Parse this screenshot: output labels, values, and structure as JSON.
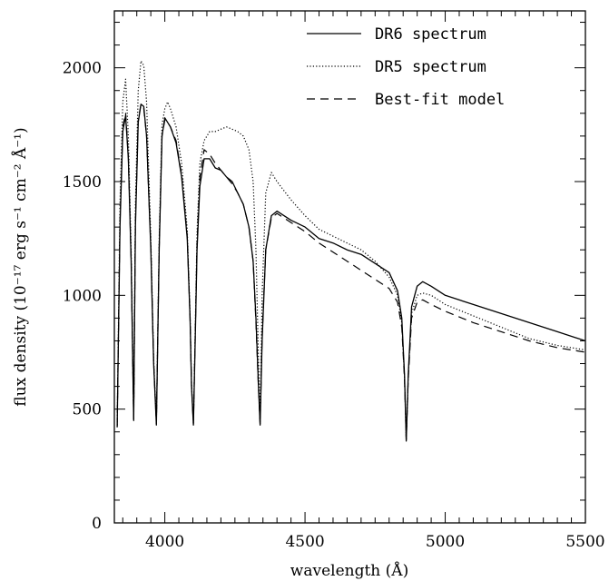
{
  "chart_data": {
    "type": "line",
    "xlabel": "wavelength (Å)",
    "ylabel": "flux density (10⁻¹⁷ erg s⁻¹ cm⁻² Å⁻¹)",
    "xlim": [
      3820,
      5500
    ],
    "ylim": [
      0,
      2250
    ],
    "x_ticks": [
      4000,
      4500,
      5000,
      5500
    ],
    "y_ticks": [
      0,
      500,
      1000,
      1500,
      2000
    ],
    "grid": false,
    "legend_position": "top-right",
    "series": [
      {
        "name": "DR6 spectrum",
        "style": "solid",
        "x": [
          3830,
          3840,
          3850,
          3860,
          3870,
          3880,
          3889,
          3895,
          3905,
          3915,
          3925,
          3935,
          3950,
          3960,
          3970,
          3980,
          3990,
          4000,
          4010,
          4020,
          4040,
          4060,
          4080,
          4090,
          4095,
          4102,
          4110,
          4115,
          4125,
          4140,
          4160,
          4180,
          4200,
          4220,
          4240,
          4260,
          4280,
          4300,
          4315,
          4325,
          4334,
          4340,
          4347,
          4360,
          4380,
          4400,
          4450,
          4500,
          4550,
          4600,
          4650,
          4700,
          4750,
          4800,
          4830,
          4845,
          4855,
          4861,
          4868,
          4880,
          4900,
          4920,
          4950,
          5000,
          5100,
          5200,
          5300,
          5400,
          5500
        ],
        "values": [
          420,
          1300,
          1720,
          1790,
          1600,
          1150,
          450,
          1300,
          1760,
          1840,
          1830,
          1700,
          1200,
          700,
          430,
          1200,
          1700,
          1780,
          1760,
          1740,
          1670,
          1520,
          1250,
          900,
          600,
          430,
          900,
          1200,
          1480,
          1600,
          1600,
          1560,
          1550,
          1520,
          1500,
          1450,
          1400,
          1300,
          1150,
          900,
          600,
          430,
          800,
          1200,
          1350,
          1370,
          1330,
          1300,
          1250,
          1230,
          1200,
          1180,
          1140,
          1100,
          1020,
          900,
          650,
          360,
          650,
          950,
          1040,
          1060,
          1040,
          1000,
          960,
          920,
          880,
          840,
          800
        ]
      },
      {
        "name": "DR5 spectrum",
        "style": "dotted",
        "x": [
          3830,
          3840,
          3850,
          3860,
          3870,
          3880,
          3889,
          3895,
          3905,
          3915,
          3925,
          3935,
          3950,
          3960,
          3970,
          3980,
          3990,
          4000,
          4010,
          4020,
          4040,
          4060,
          4080,
          4090,
          4095,
          4102,
          4110,
          4115,
          4125,
          4140,
          4160,
          4180,
          4200,
          4220,
          4240,
          4260,
          4280,
          4300,
          4315,
          4325,
          4334,
          4340,
          4347,
          4360,
          4380,
          4400,
          4450,
          4500,
          4550,
          4600,
          4650,
          4700,
          4750,
          4800,
          4830,
          4845,
          4855,
          4861,
          4868,
          4880,
          4900,
          4920,
          4950,
          5000,
          5100,
          5200,
          5300,
          5400,
          5500
        ],
        "values": [
          430,
          1400,
          1850,
          1950,
          1700,
          1200,
          460,
          1400,
          1900,
          2030,
          2010,
          1850,
          1250,
          720,
          440,
          1250,
          1750,
          1820,
          1850,
          1820,
          1740,
          1580,
          1290,
          920,
          610,
          440,
          950,
          1280,
          1580,
          1680,
          1720,
          1720,
          1730,
          1740,
          1730,
          1720,
          1700,
          1640,
          1500,
          1200,
          720,
          440,
          1000,
          1450,
          1540,
          1500,
          1420,
          1350,
          1290,
          1260,
          1230,
          1200,
          1150,
          1080,
          1000,
          880,
          640,
          370,
          640,
          920,
          1000,
          1010,
          1000,
          960,
          910,
          860,
          810,
          780,
          760
        ]
      },
      {
        "name": "Best-fit model",
        "style": "dashed",
        "x": [
          3830,
          3840,
          3850,
          3860,
          3870,
          3880,
          3889,
          3895,
          3905,
          3915,
          3925,
          3935,
          3950,
          3960,
          3970,
          3980,
          3990,
          4000,
          4010,
          4020,
          4040,
          4060,
          4080,
          4090,
          4095,
          4102,
          4110,
          4115,
          4125,
          4140,
          4160,
          4180,
          4200,
          4220,
          4240,
          4260,
          4280,
          4300,
          4315,
          4325,
          4334,
          4340,
          4347,
          4360,
          4380,
          4400,
          4450,
          4500,
          4550,
          4600,
          4650,
          4700,
          4750,
          4800,
          4830,
          4845,
          4855,
          4861,
          4868,
          4880,
          4900,
          4920,
          4950,
          5000,
          5100,
          5200,
          5300,
          5400,
          5500
        ],
        "values": [
          425,
          1320,
          1740,
          1800,
          1610,
          1160,
          455,
          1320,
          1770,
          1840,
          1820,
          1700,
          1210,
          705,
          435,
          1210,
          1700,
          1770,
          1760,
          1740,
          1680,
          1530,
          1260,
          905,
          605,
          435,
          920,
          1230,
          1520,
          1640,
          1620,
          1580,
          1550,
          1520,
          1490,
          1450,
          1400,
          1300,
          1150,
          880,
          590,
          435,
          820,
          1200,
          1340,
          1360,
          1320,
          1280,
          1230,
          1190,
          1150,
          1110,
          1070,
          1030,
          970,
          860,
          630,
          365,
          630,
          900,
          970,
          980,
          960,
          930,
          880,
          840,
          800,
          770,
          750
        ]
      }
    ]
  }
}
